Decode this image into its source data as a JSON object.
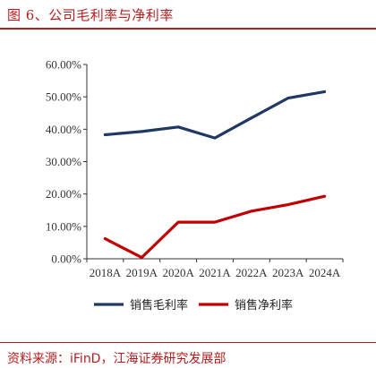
{
  "figure": {
    "title": "图 6、公司毛利率与净利率",
    "source": "资料来源：iFinD，江海证券研究发展部"
  },
  "chart_data": {
    "type": "line",
    "title": "",
    "xlabel": "",
    "ylabel": "",
    "categories": [
      "2018A",
      "2019A",
      "2020A",
      "2021A",
      "2022A",
      "2023A",
      "2024A"
    ],
    "ylim": [
      0,
      60
    ],
    "yticks": [
      "0.00%",
      "10.00%",
      "20.00%",
      "30.00%",
      "40.00%",
      "50.00%",
      "60.00%"
    ],
    "grid": false,
    "legend_position": "bottom",
    "series": [
      {
        "name": "销售毛利率",
        "color": "#1f3864",
        "values": [
          38.3,
          39.3,
          40.7,
          37.3,
          43.5,
          49.6,
          51.6
        ]
      },
      {
        "name": "销售净利率",
        "color": "#c00000",
        "values": [
          6.2,
          0.4,
          11.3,
          11.3,
          14.7,
          16.7,
          19.3
        ]
      }
    ]
  },
  "colors": {
    "accent": "#b41e1e",
    "axis": "#333333"
  }
}
